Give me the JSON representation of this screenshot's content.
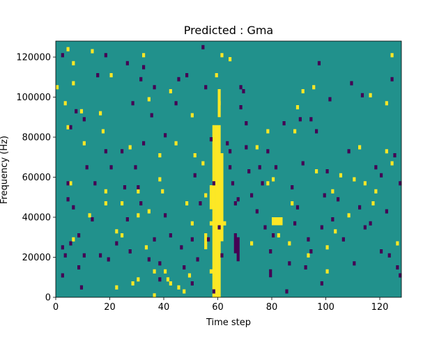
{
  "chart_data": {
    "type": "heatmap",
    "title": "Predicted : Gma",
    "xlabel": "Time step",
    "ylabel": "Frequency (Hz)",
    "xlim": [
      0,
      128
    ],
    "ylim": [
      0,
      128000
    ],
    "xticks": [
      0,
      20,
      40,
      60,
      80,
      100,
      120
    ],
    "yticks": [
      0,
      20000,
      40000,
      60000,
      80000,
      100000,
      120000
    ],
    "colormap": {
      "low": "#440154",
      "mid": "#21918c",
      "high": "#fde725"
    },
    "background_level": "mid",
    "cells_high": [
      [
        0,
        104000
      ],
      [
        4,
        123000
      ],
      [
        4,
        84000
      ],
      [
        3,
        96000
      ],
      [
        5,
        56000
      ],
      [
        6,
        28000
      ],
      [
        6,
        116000
      ],
      [
        6,
        106000
      ],
      [
        9,
        92000
      ],
      [
        10,
        76000
      ],
      [
        12,
        40000
      ],
      [
        13,
        122000
      ],
      [
        16,
        91000
      ],
      [
        17,
        82000
      ],
      [
        18,
        52000
      ],
      [
        18,
        46000
      ],
      [
        20,
        110000
      ],
      [
        22,
        32000
      ],
      [
        22,
        4000
      ],
      [
        24,
        46000
      ],
      [
        24,
        30000
      ],
      [
        27,
        74000
      ],
      [
        28,
        6000
      ],
      [
        30,
        52000
      ],
      [
        30,
        8000
      ],
      [
        30,
        40000
      ],
      [
        32,
        120000
      ],
      [
        33,
        24000
      ],
      [
        34,
        42000
      ],
      [
        34,
        98000
      ],
      [
        36,
        12000
      ],
      [
        36,
        0
      ],
      [
        38,
        70000
      ],
      [
        38,
        58000
      ],
      [
        39,
        52000
      ],
      [
        40,
        12000
      ],
      [
        41,
        8000
      ],
      [
        42,
        6000
      ],
      [
        42,
        102000
      ],
      [
        44,
        76000
      ],
      [
        45,
        4000
      ],
      [
        47,
        2000
      ],
      [
        48,
        46000
      ],
      [
        49,
        10000
      ],
      [
        50,
        36000
      ],
      [
        50,
        90000
      ],
      [
        51,
        70000
      ],
      [
        54,
        66000
      ],
      [
        55,
        50000
      ],
      [
        57,
        36000
      ],
      [
        57,
        12000
      ],
      [
        59,
        110000
      ],
      [
        60,
        96000
      ],
      [
        61,
        120000
      ],
      [
        62,
        36000
      ],
      [
        64,
        118000
      ],
      [
        72,
        26000
      ],
      [
        74,
        74000
      ],
      [
        78,
        82000
      ],
      [
        78,
        56000
      ],
      [
        80,
        58000
      ],
      [
        82,
        30000
      ],
      [
        86,
        26000
      ],
      [
        87,
        46000
      ],
      [
        88,
        82000
      ],
      [
        89,
        94000
      ],
      [
        91,
        102000
      ],
      [
        93,
        20000
      ],
      [
        95,
        104000
      ],
      [
        96,
        62000
      ],
      [
        100,
        24000
      ],
      [
        100,
        12000
      ],
      [
        102,
        52000
      ],
      [
        103,
        32000
      ],
      [
        105,
        60000
      ],
      [
        108,
        40000
      ],
      [
        110,
        58000
      ],
      [
        112,
        74000
      ],
      [
        114,
        56000
      ],
      [
        116,
        100000
      ],
      [
        117,
        46000
      ],
      [
        118,
        52000
      ],
      [
        122,
        96000
      ],
      [
        122,
        72000
      ],
      [
        124,
        66000
      ],
      [
        124,
        120000
      ],
      [
        126,
        26000
      ]
    ],
    "cells_low": [
      [
        2,
        120000
      ],
      [
        4,
        48000
      ],
      [
        4,
        56000
      ],
      [
        3,
        20000
      ],
      [
        2,
        24000
      ],
      [
        2,
        10000
      ],
      [
        6,
        44000
      ],
      [
        5,
        84000
      ],
      [
        5,
        26000
      ],
      [
        7,
        92000
      ],
      [
        8,
        14000
      ],
      [
        8,
        30000
      ],
      [
        9,
        4000
      ],
      [
        10,
        20000
      ],
      [
        10,
        88000
      ],
      [
        11,
        64000
      ],
      [
        13,
        38000
      ],
      [
        14,
        56000
      ],
      [
        15,
        110000
      ],
      [
        16,
        20000
      ],
      [
        18,
        120000
      ],
      [
        18,
        72000
      ],
      [
        19,
        18000
      ],
      [
        20,
        64000
      ],
      [
        22,
        26000
      ],
      [
        24,
        72000
      ],
      [
        25,
        54000
      ],
      [
        26,
        38000
      ],
      [
        26,
        116000
      ],
      [
        27,
        22000
      ],
      [
        28,
        96000
      ],
      [
        29,
        64000
      ],
      [
        30,
        54000
      ],
      [
        31,
        108000
      ],
      [
        31,
        46000
      ],
      [
        32,
        76000
      ],
      [
        32,
        114000
      ],
      [
        34,
        18000
      ],
      [
        35,
        90000
      ],
      [
        36,
        104000
      ],
      [
        36,
        28000
      ],
      [
        38,
        8000
      ],
      [
        38,
        16000
      ],
      [
        40,
        80000
      ],
      [
        40,
        40000
      ],
      [
        42,
        30000
      ],
      [
        44,
        96000
      ],
      [
        45,
        108000
      ],
      [
        46,
        24000
      ],
      [
        47,
        14000
      ],
      [
        48,
        110000
      ],
      [
        50,
        6000
      ],
      [
        50,
        28000
      ],
      [
        51,
        60000
      ],
      [
        52,
        18000
      ],
      [
        53,
        46000
      ],
      [
        54,
        124000
      ],
      [
        55,
        104000
      ],
      [
        56,
        28000
      ],
      [
        57,
        78000
      ],
      [
        58,
        2000
      ],
      [
        58,
        56000
      ],
      [
        60,
        34000
      ],
      [
        61,
        20000
      ],
      [
        63,
        76000
      ],
      [
        64,
        64000
      ],
      [
        64,
        72000
      ],
      [
        65,
        56000
      ],
      [
        66,
        46000
      ],
      [
        67,
        48000
      ],
      [
        68,
        94000
      ],
      [
        68,
        104000
      ],
      [
        69,
        102000
      ],
      [
        70,
        86000
      ],
      [
        70,
        74000
      ],
      [
        71,
        62000
      ],
      [
        72,
        50000
      ],
      [
        74,
        42000
      ],
      [
        75,
        64000
      ],
      [
        76,
        56000
      ],
      [
        77,
        34000
      ],
      [
        78,
        72000
      ],
      [
        79,
        22000
      ],
      [
        80,
        30000
      ],
      [
        81,
        64000
      ],
      [
        84,
        86000
      ],
      [
        85,
        2000
      ],
      [
        86,
        16000
      ],
      [
        87,
        54000
      ],
      [
        88,
        36000
      ],
      [
        89,
        44000
      ],
      [
        90,
        88000
      ],
      [
        91,
        66000
      ],
      [
        92,
        14000
      ],
      [
        93,
        28000
      ],
      [
        94,
        88000
      ],
      [
        94,
        22000
      ],
      [
        96,
        82000
      ],
      [
        97,
        116000
      ],
      [
        98,
        6000
      ],
      [
        98,
        34000
      ],
      [
        99,
        50000
      ],
      [
        100,
        62000
      ],
      [
        101,
        98000
      ],
      [
        102,
        38000
      ],
      [
        104,
        48000
      ],
      [
        106,
        28000
      ],
      [
        108,
        72000
      ],
      [
        109,
        106000
      ],
      [
        110,
        16000
      ],
      [
        112,
        44000
      ],
      [
        113,
        100000
      ],
      [
        114,
        34000
      ],
      [
        116,
        36000
      ],
      [
        118,
        64000
      ],
      [
        120,
        60000
      ],
      [
        120,
        22000
      ],
      [
        122,
        42000
      ],
      [
        123,
        20000
      ],
      [
        124,
        108000
      ],
      [
        125,
        70000
      ],
      [
        126,
        14000
      ],
      [
        127,
        56000
      ],
      [
        127,
        10000
      ]
    ],
    "columns_high": [
      {
        "x": 58,
        "yrange": [
          0,
          86000
        ]
      },
      {
        "x": 59,
        "yrange": [
          0,
          86000
        ]
      },
      {
        "x": 60,
        "yrange": [
          0,
          86000
        ]
      },
      {
        "x": 61,
        "yrange": [
          28000,
          72000
        ]
      },
      {
        "x": 60,
        "yrange": [
          90000,
          104000
        ]
      },
      {
        "x": 55,
        "yrange": [
          24000,
          32000
        ]
      },
      {
        "x": 57,
        "yrange": [
          44000,
          56000
        ]
      }
    ],
    "columns_low": [
      {
        "x": 66,
        "yrange": [
          22000,
          32000
        ]
      },
      {
        "x": 67,
        "yrange": [
          18000,
          30000
        ]
      },
      {
        "x": 79,
        "yrange": [
          10000,
          14000
        ]
      }
    ],
    "blocks_high": [
      {
        "x": [
          80,
          83
        ],
        "yrange": [
          36000,
          40000
        ]
      }
    ]
  }
}
